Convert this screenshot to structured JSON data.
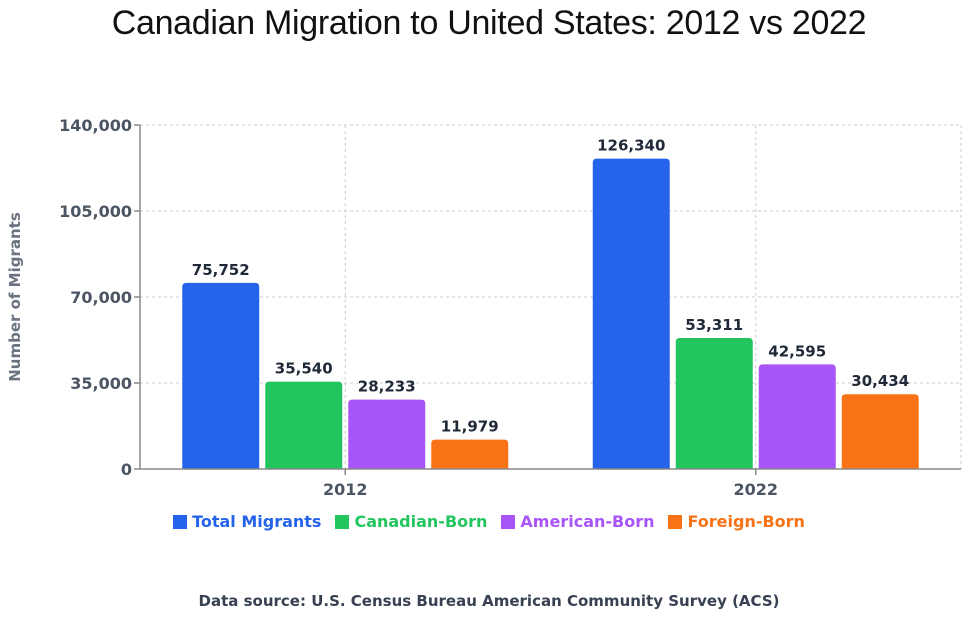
{
  "chart_data": {
    "type": "bar",
    "title": "Canadian Migration to United States: 2012 vs 2022",
    "xlabel": "",
    "ylabel": "Number of Migrants",
    "categories": [
      "2012",
      "2022"
    ],
    "ylim": [
      0,
      140000
    ],
    "yticks": [
      0,
      35000,
      70000,
      105000,
      140000
    ],
    "ytick_labels": [
      "0",
      "35,000",
      "70,000",
      "105,000",
      "140,000"
    ],
    "grid": true,
    "legend_position": "bottom",
    "series": [
      {
        "name": "Total Migrants",
        "color": "#2563eb",
        "values": [
          75752,
          126340
        ],
        "labels": [
          "75,752",
          "126,340"
        ]
      },
      {
        "name": "Canadian-Born",
        "color": "#22c55e",
        "values": [
          35540,
          53311
        ],
        "labels": [
          "35,540",
          "53,311"
        ]
      },
      {
        "name": "American-Born",
        "color": "#a855f7",
        "values": [
          28233,
          42595
        ],
        "labels": [
          "28,233",
          "42,595"
        ]
      },
      {
        "name": "Foreign-Born",
        "color": "#f97316",
        "values": [
          11979,
          30434
        ],
        "labels": [
          "11,979",
          "30,434"
        ]
      }
    ],
    "source_note": "Data source: U.S. Census Bureau American Community Survey (ACS)"
  }
}
